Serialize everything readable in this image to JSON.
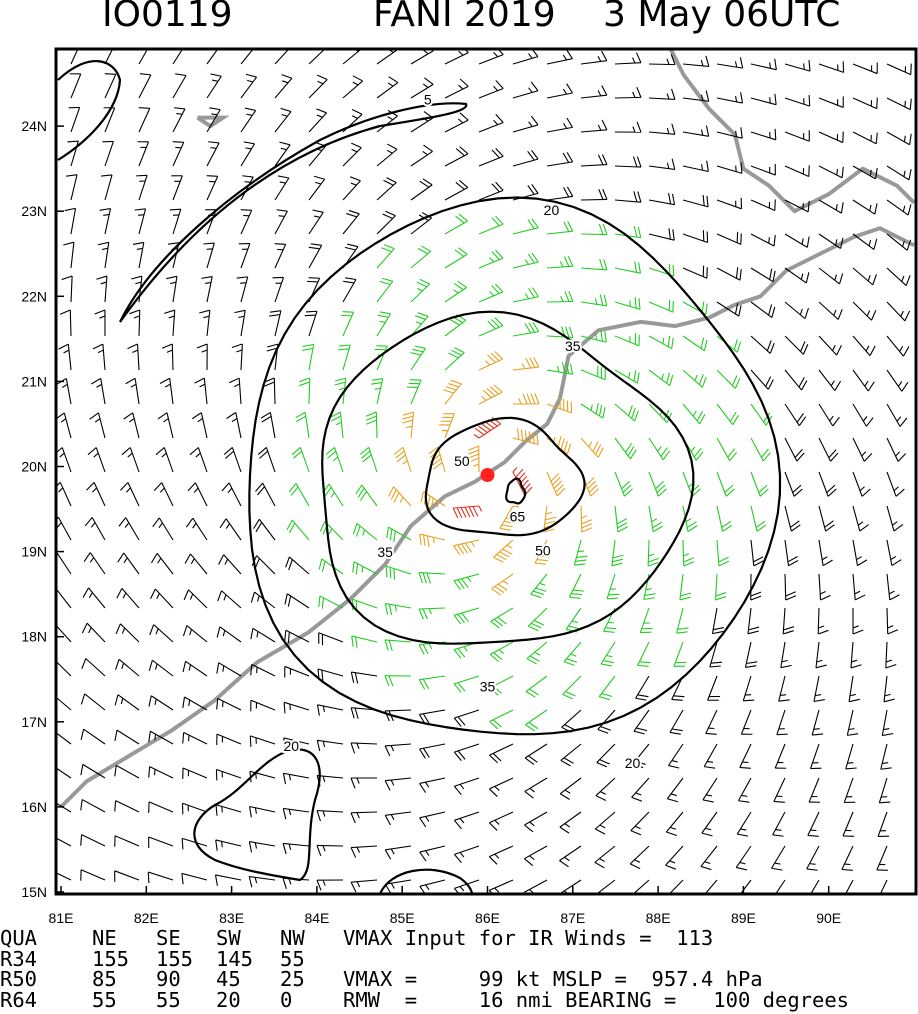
{
  "header": {
    "storm_id": "IO0119",
    "storm_name": "FANI 2019",
    "datetime": "3 May 06UTC"
  },
  "colors": {
    "calm": "#000000",
    "gale": "#22cc22",
    "storm": "#e8a020",
    "hurricane": "#e03020",
    "coast": "#999999",
    "contour": "#000000",
    "center": "#ff2020"
  },
  "chart_data": {
    "type": "contour",
    "variable": "surface wind speed (kt), wind barbs",
    "x_ticks": [
      "81E",
      "82E",
      "83E",
      "84E",
      "85E",
      "86E",
      "87E",
      "88E",
      "89E",
      "90E"
    ],
    "y_ticks": [
      "15N",
      "16N",
      "17N",
      "18N",
      "19N",
      "20N",
      "21N",
      "22N",
      "23N",
      "24N"
    ],
    "xlim": [
      81,
      91
    ],
    "ylim": [
      15,
      25
    ],
    "center": {
      "lon": 86.0,
      "lat": 19.9
    },
    "contour_levels": [
      5,
      20,
      35,
      50,
      65
    ],
    "contour_labels": [
      {
        "text": "5",
        "lon": 85.3,
        "lat": 24.3
      },
      {
        "text": "20",
        "lon": 86.75,
        "lat": 23.0
      },
      {
        "text": "20",
        "lon": 87.7,
        "lat": 16.5
      },
      {
        "text": "20",
        "lon": 83.7,
        "lat": 16.7
      },
      {
        "text": "35",
        "lon": 87.0,
        "lat": 21.4
      },
      {
        "text": "35",
        "lon": 84.8,
        "lat": 18.98
      },
      {
        "text": "35",
        "lon": 86.0,
        "lat": 17.4
      },
      {
        "text": "50",
        "lon": 85.7,
        "lat": 20.05
      },
      {
        "text": "50",
        "lon": 86.65,
        "lat": 19.0
      },
      {
        "text": "65",
        "lon": 86.35,
        "lat": 19.4
      }
    ],
    "vmax_kt": 99,
    "mslp_hpa": 957.4,
    "rmw_nmi": 16,
    "bearing_deg": 100
  },
  "table": {
    "header_cols": [
      "QUA",
      "NE",
      "SE",
      "SW",
      "NW"
    ],
    "rows": [
      {
        "label": "R34",
        "values": [
          "155",
          "155",
          "145",
          "55"
        ]
      },
      {
        "label": "R50",
        "values": [
          "85",
          "90",
          "45",
          "25"
        ]
      },
      {
        "label": "R64",
        "values": [
          "55",
          "55",
          "20",
          "0"
        ]
      }
    ],
    "line1": "VMAX Input for IR Winds =  113",
    "line2": "VMAX =     99 kt MSLP =  957.4 hPa",
    "line3": "RMW  =     16 nmi BEARING =   100 degrees"
  }
}
